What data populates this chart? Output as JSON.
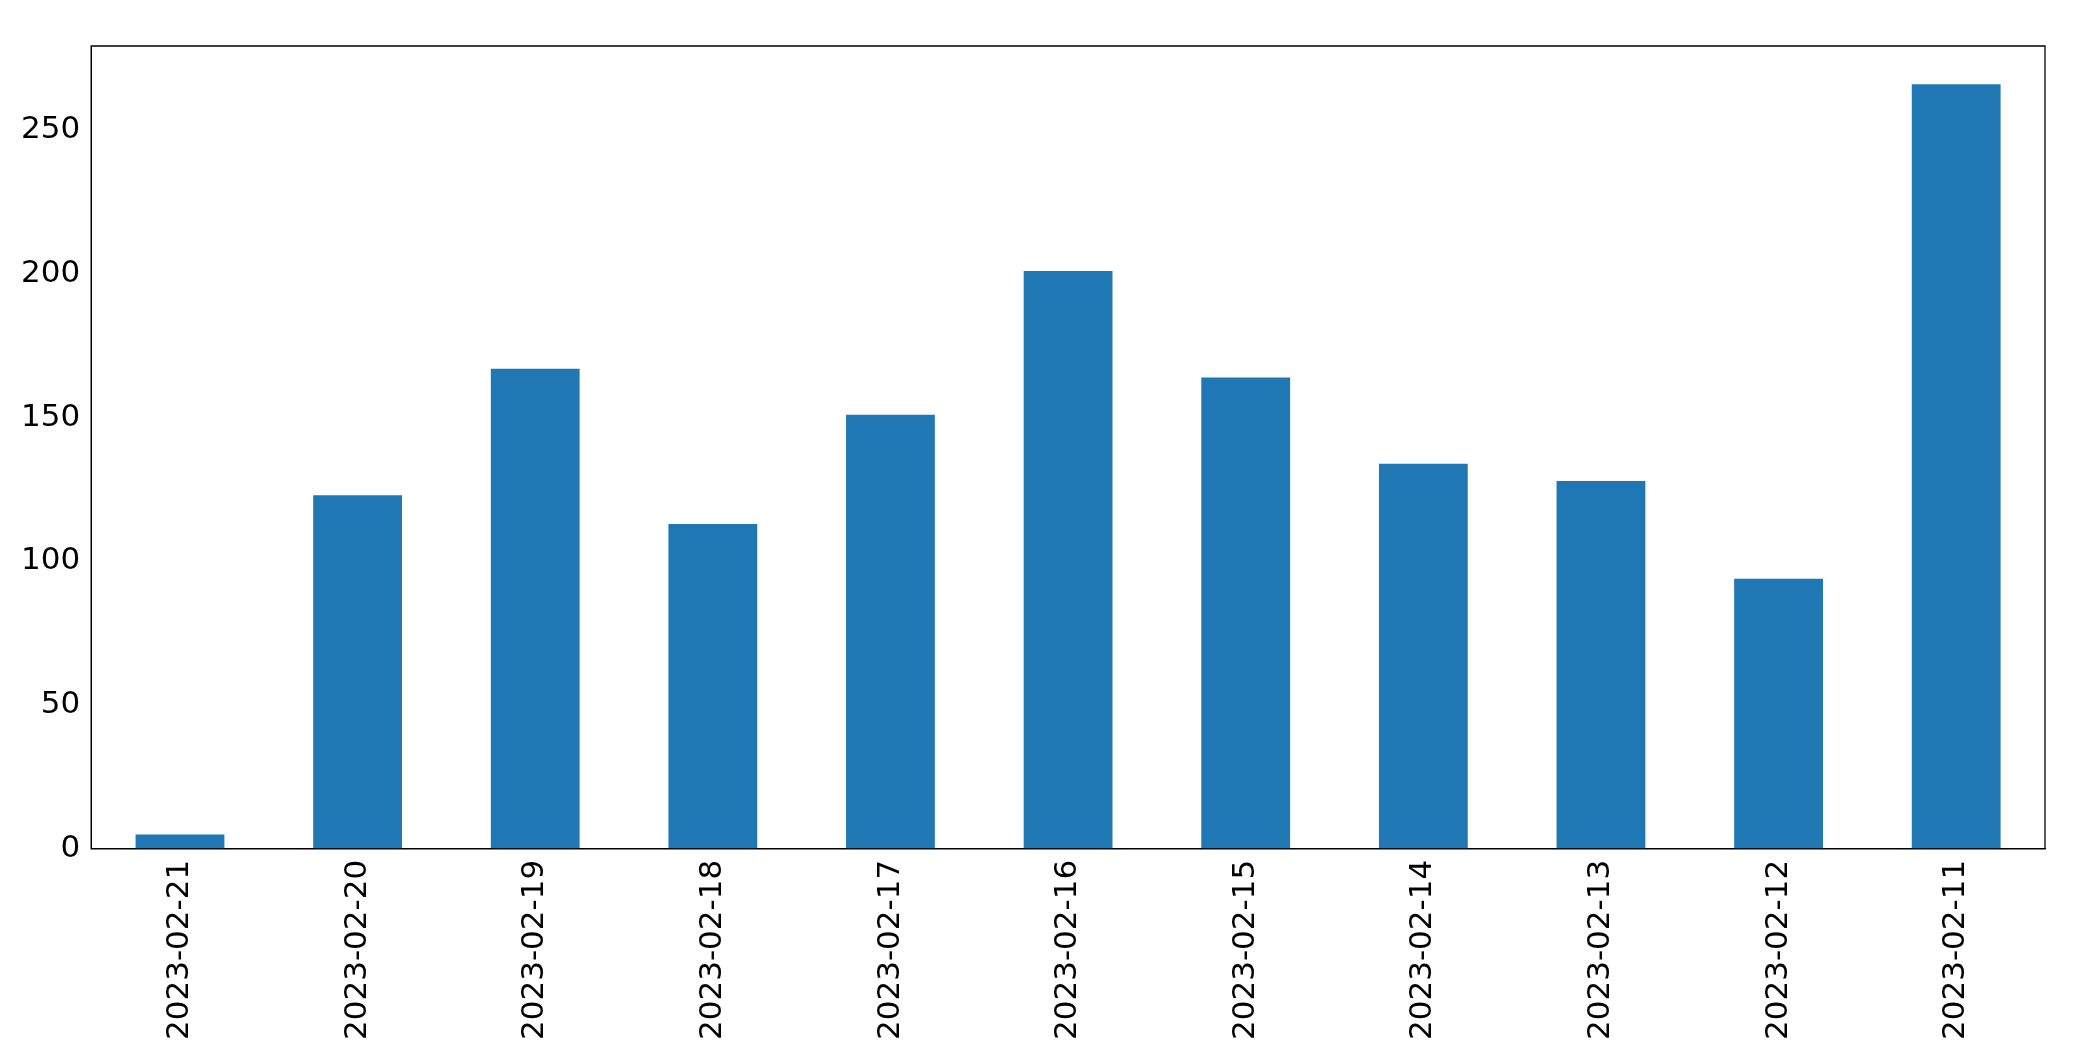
{
  "chart_data": {
    "type": "bar",
    "categories": [
      "2023-02-21",
      "2023-02-20",
      "2023-02-19",
      "2023-02-18",
      "2023-02-17",
      "2023-02-16",
      "2023-02-15",
      "2023-02-14",
      "2023-02-13",
      "2023-02-12",
      "2023-02-11"
    ],
    "values": [
      5,
      123,
      167,
      113,
      151,
      201,
      164,
      134,
      128,
      94,
      266
    ],
    "color": "#1f77b4",
    "ylim": [
      0,
      279.3
    ],
    "yticks": [
      0,
      50,
      100,
      150,
      200,
      250
    ],
    "grid": false,
    "legend": false
  }
}
